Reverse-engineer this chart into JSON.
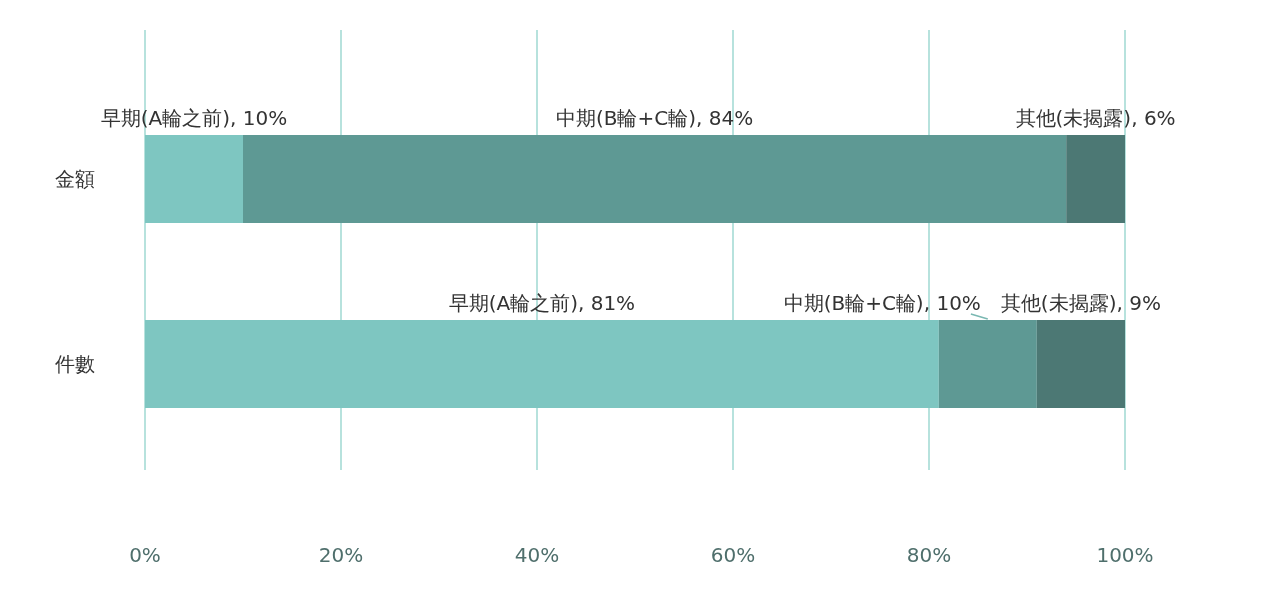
{
  "chart_data": {
    "type": "bar",
    "orientation": "horizontal",
    "stacked": true,
    "categories": [
      "金額",
      "件數"
    ],
    "series": [
      {
        "name": "早期(A輪之前)",
        "color": "#7ec6c1",
        "values": [
          10,
          81
        ],
        "value_labels": [
          ", 10%",
          ", 81%"
        ]
      },
      {
        "name": "中期(B輪+C輪)",
        "color": "#5e9994",
        "values": [
          84,
          10
        ],
        "value_labels": [
          ", 84%",
          ", 10%"
        ]
      },
      {
        "name": "其他(未揭露)",
        "color": "#4c7874",
        "values": [
          6,
          9
        ],
        "value_labels": [
          ", 6%",
          ", 9%"
        ]
      }
    ],
    "xlim": [
      0,
      100
    ],
    "xticks": [
      {
        "value": 0,
        "label": "0%"
      },
      {
        "value": 20,
        "label": "20%"
      },
      {
        "value": 40,
        "label": "40%"
      },
      {
        "value": 60,
        "label": "60%"
      },
      {
        "value": 80,
        "label": "80%"
      },
      {
        "value": 100,
        "label": "100%"
      }
    ],
    "grid": "x"
  }
}
